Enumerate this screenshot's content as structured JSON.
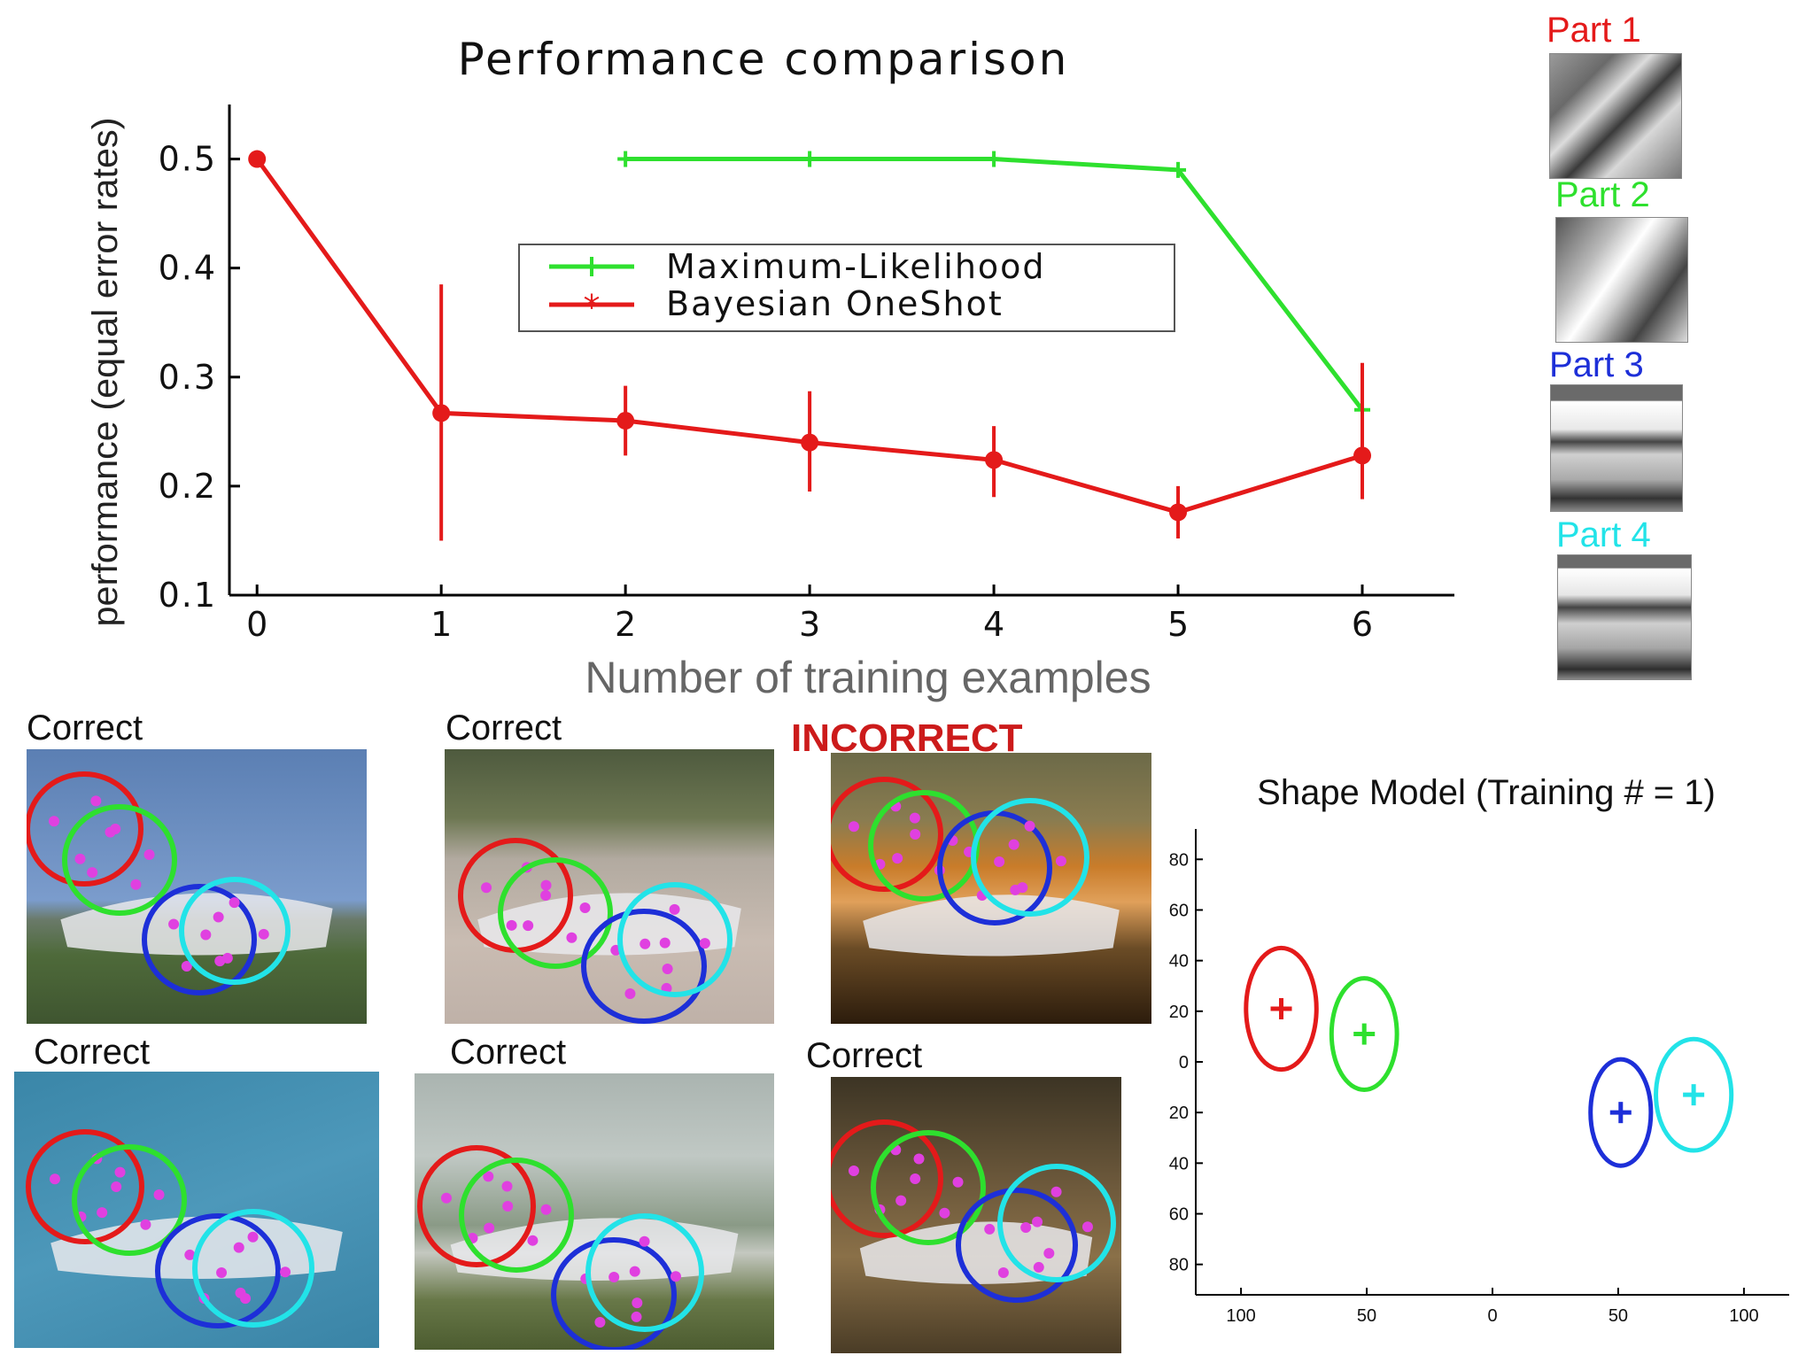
{
  "colors": {
    "ml": "#2ee02e",
    "bayes": "#e41a1a",
    "part1": "#e41a1a",
    "part2": "#2ee02e",
    "part3": "#1d2fd8",
    "part4": "#22e3e8",
    "features": "#e040e0",
    "axis": "#000000"
  },
  "chart_data": [
    {
      "type": "line",
      "title": "Performance comparison",
      "xlabel": "Number of training examples",
      "ylabel": "performance (equal error rates)",
      "xlim": [
        -0.15,
        6.5
      ],
      "ylim": [
        0.1,
        0.55
      ],
      "xticks": [
        0,
        1,
        2,
        3,
        4,
        5,
        6
      ],
      "xtick_labels": [
        "0",
        "1",
        "2",
        "3",
        "4",
        "5",
        "6"
      ],
      "yticks": [
        0.1,
        0.2,
        0.3,
        0.4,
        0.5
      ],
      "ytick_labels": [
        "0.1",
        "0.2",
        "0.3",
        "0.4",
        "0.5"
      ],
      "legend_position": "center",
      "series": [
        {
          "name": "Maximum-Likelihood",
          "color": "#2ee02e",
          "marker": "plus",
          "x": [
            2,
            3,
            4,
            5,
            6
          ],
          "y": [
            0.5,
            0.5,
            0.5,
            0.49,
            0.27
          ]
        },
        {
          "name": "Bayesian OneShot",
          "color": "#e41a1a",
          "marker": "star",
          "x": [
            0,
            1,
            2,
            3,
            4,
            5,
            6
          ],
          "y": [
            0.5,
            0.267,
            0.26,
            0.24,
            0.224,
            0.176,
            0.228
          ],
          "err_low": [
            0.5,
            0.15,
            0.228,
            0.195,
            0.19,
            0.152,
            0.188
          ],
          "err_high": [
            0.5,
            0.385,
            0.292,
            0.287,
            0.255,
            0.2,
            0.313
          ]
        }
      ]
    },
    {
      "type": "scatter",
      "title": "Shape Model (Training # = 1)",
      "xlim": [
        -118,
        118
      ],
      "ylim": [
        -92,
        92
      ],
      "xticks": [
        -100,
        -50,
        0,
        50,
        100
      ],
      "xtick_labels": [
        "100",
        "50",
        "0",
        "50",
        "100"
      ],
      "yticks": [
        80,
        60,
        40,
        20,
        0,
        -20,
        -40,
        -60,
        -80
      ],
      "ytick_labels": [
        "80",
        "60",
        "40",
        "20",
        "0",
        "20",
        "40",
        "60",
        "80"
      ],
      "grid": false,
      "series": [
        {
          "name": "Part 1",
          "color": "#e41a1a",
          "x": [
            -84
          ],
          "y": [
            21
          ],
          "sx": 14,
          "sy": 24
        },
        {
          "name": "Part 2",
          "color": "#2ee02e",
          "x": [
            -51
          ],
          "y": [
            11
          ],
          "sx": 13,
          "sy": 22
        },
        {
          "name": "Part 3",
          "color": "#1d2fd8",
          "x": [
            51
          ],
          "y": [
            -20
          ],
          "sx": 12,
          "sy": 21
        },
        {
          "name": "Part 4",
          "color": "#22e3e8",
          "x": [
            80
          ],
          "y": [
            -13
          ],
          "sx": 15,
          "sy": 22
        }
      ]
    }
  ],
  "parts": [
    {
      "label": "Part 1",
      "color": "#e41a1a"
    },
    {
      "label": "Part 2",
      "color": "#2ee02e"
    },
    {
      "label": "Part 3",
      "color": "#1d2fd8"
    },
    {
      "label": "Part 4",
      "color": "#22e3e8"
    }
  ],
  "examples": [
    {
      "label": "Correct"
    },
    {
      "label": "Correct"
    },
    {
      "label": "INCORRECT"
    },
    {
      "label": "Correct"
    },
    {
      "label": "Correct"
    },
    {
      "label": "Correct"
    }
  ]
}
